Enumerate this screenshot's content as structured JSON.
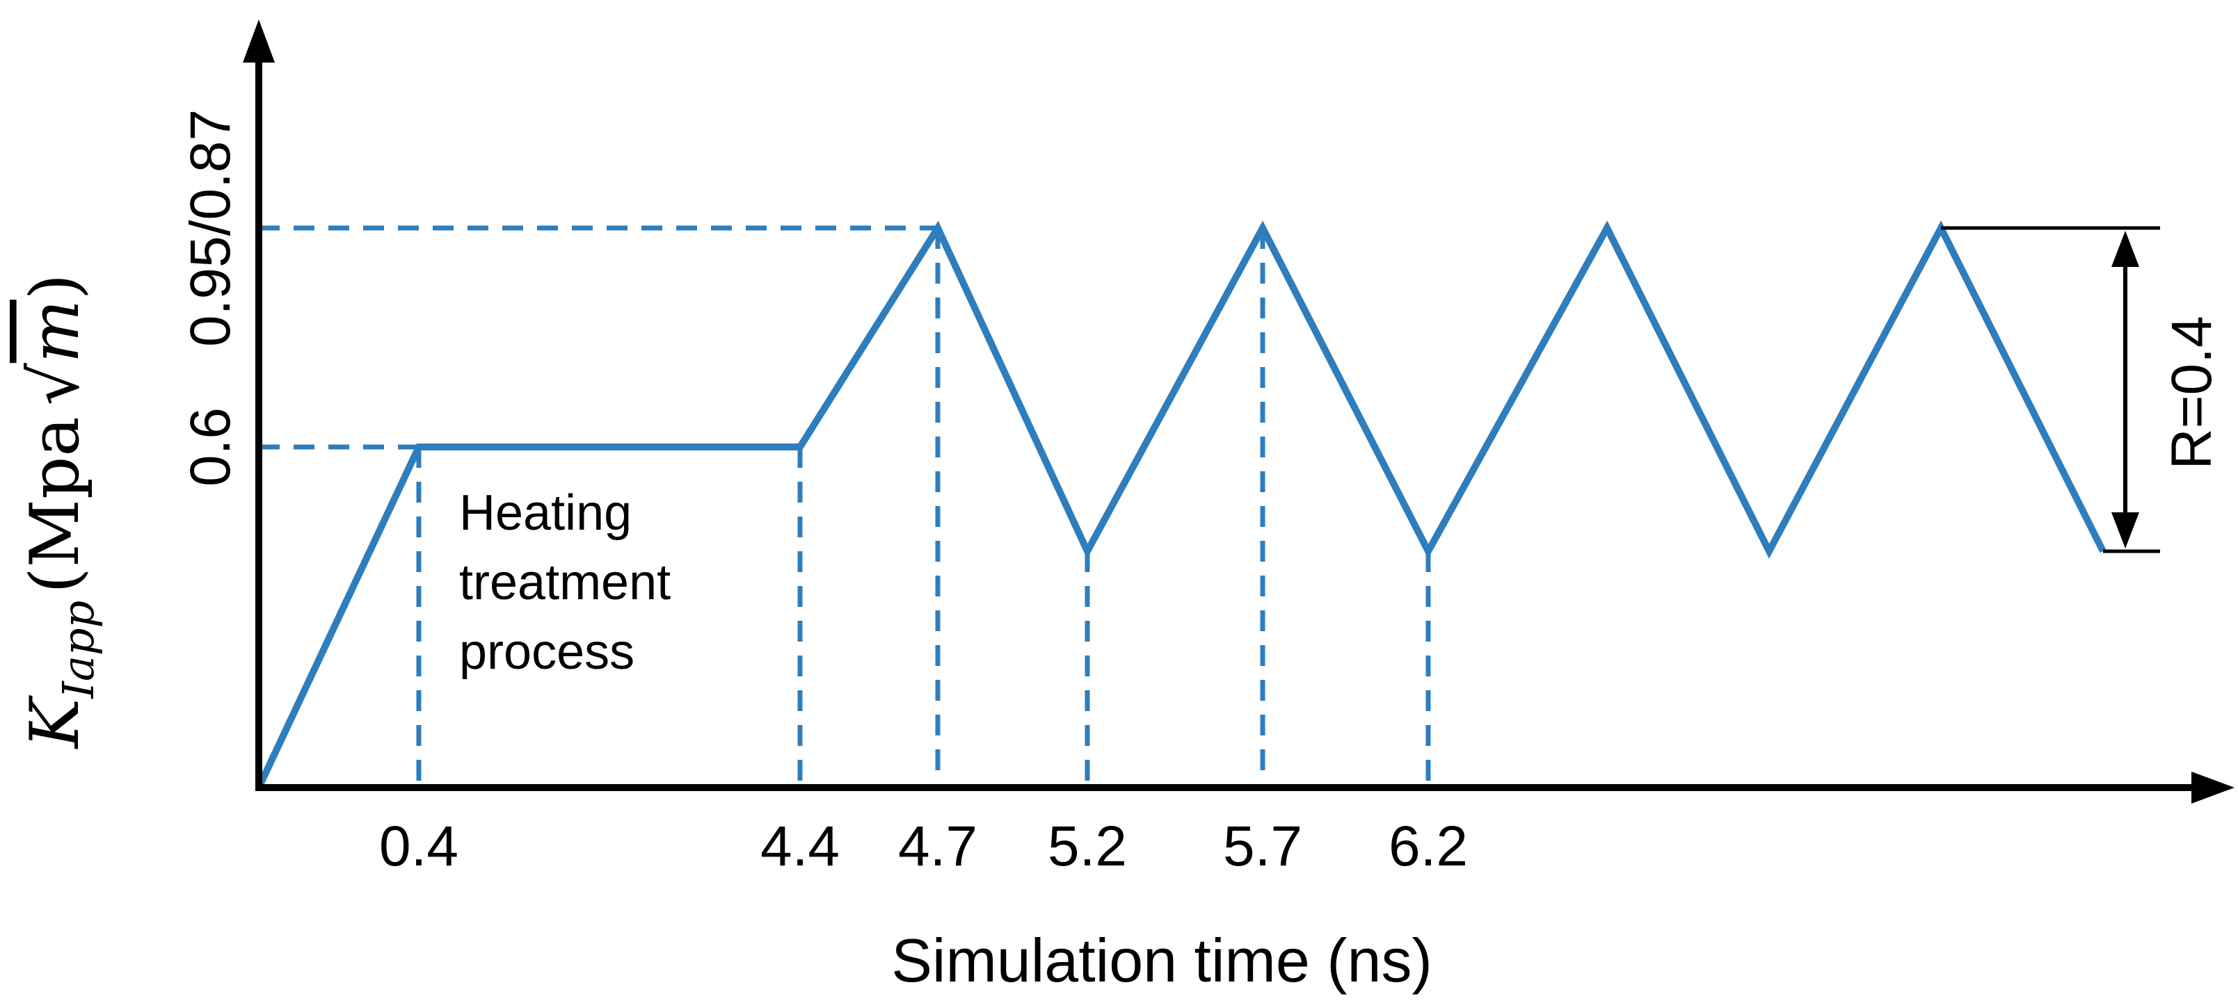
{
  "chart_data": {
    "type": "line",
    "title": "",
    "xlabel": "Simulation time (ns)",
    "ylabel": {
      "symbol": "K",
      "subscript": "Iapp",
      "unit_prefix": "(Mpa",
      "unit_sqrt": "√",
      "unit_var": "m",
      "unit_suffix": ")"
    },
    "x_ticks": [
      "0.4",
      "4.4",
      "4.7",
      "5.2",
      "5.7",
      "6.2"
    ],
    "y_ticks": [
      "0.6",
      "0.95/0.87"
    ],
    "series": [
      {
        "x": [
          0,
          0.4,
          4.4,
          4.7,
          5.2,
          5.7,
          6.2,
          6.7,
          7.2,
          7.7,
          8.2
        ],
        "y": [
          0,
          0.6,
          0.6,
          0.95,
          0.38,
          0.95,
          0.38,
          0.95,
          0.38,
          0.95,
          0.38
        ]
      }
    ],
    "annotations": {
      "phase_label": [
        "Heating",
        "treatment",
        "process"
      ],
      "ratio_label": "R=0.4"
    },
    "colors": {
      "series": "#2e7dbd",
      "axes": "#000000"
    },
    "grid": false,
    "legend": "none"
  }
}
